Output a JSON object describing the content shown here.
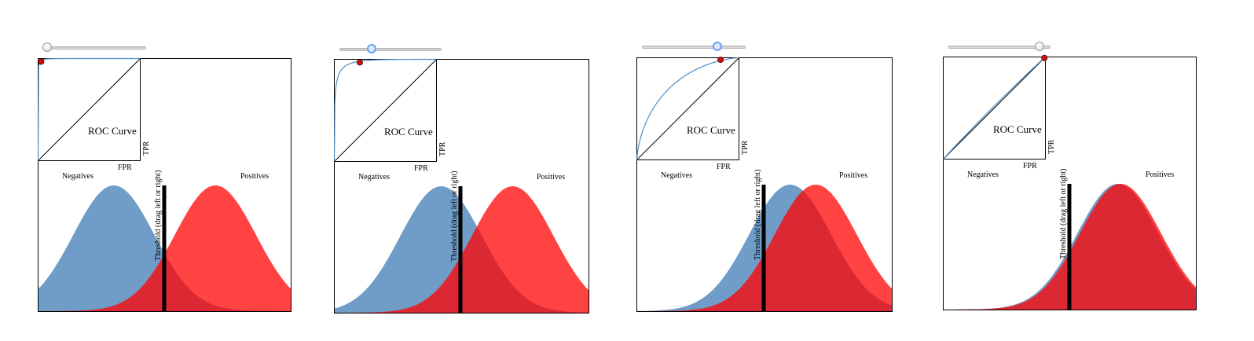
{
  "chart_data": [
    {
      "type": "area",
      "title": "",
      "roc_label": "ROC Curve",
      "roc_xlabel": "FPR",
      "roc_ylabel": "TPR",
      "neg_label": "Negatives",
      "pos_label": "Positives",
      "threshold_label": "Threshold (drag left or right)",
      "separation": 4.0,
      "threshold_position": 0.5,
      "slider_value": 0.0,
      "operating_point": {
        "fpr": 0.03,
        "tpr": 0.97
      },
      "series": [
        {
          "name": "Negatives",
          "mean": 0.3,
          "sd": 0.16
        },
        {
          "name": "Positives",
          "mean": 0.7,
          "sd": 0.16
        }
      ]
    },
    {
      "type": "area",
      "title": "",
      "roc_label": "ROC Curve",
      "roc_xlabel": "FPR",
      "roc_ylabel": "TPR",
      "neg_label": "Negatives",
      "pos_label": "Positives",
      "threshold_label": "Threshold (drag left or right)",
      "separation": 2.75,
      "threshold_position": 0.5,
      "slider_value": 0.3,
      "operating_point": {
        "fpr": 0.25,
        "tpr": 0.97
      },
      "series": [
        {
          "name": "Negatives",
          "mean": 0.42,
          "sd": 0.16
        },
        {
          "name": "Positives",
          "mean": 0.7,
          "sd": 0.16
        }
      ]
    },
    {
      "type": "area",
      "title": "",
      "roc_label": "ROC Curve",
      "roc_xlabel": "FPR",
      "roc_ylabel": "TPR",
      "neg_label": "Negatives",
      "pos_label": "Positives",
      "threshold_label": "Threshold (drag left or right)",
      "separation": 1.0,
      "threshold_position": 0.5,
      "slider_value": 0.75,
      "operating_point": {
        "fpr": 0.82,
        "tpr": 0.98
      },
      "series": [
        {
          "name": "Negatives",
          "mean": 0.6,
          "sd": 0.16
        },
        {
          "name": "Positives",
          "mean": 0.7,
          "sd": 0.16
        }
      ]
    },
    {
      "type": "area",
      "title": "",
      "roc_label": "ROC Curve",
      "roc_xlabel": "FPR",
      "roc_ylabel": "TPR",
      "neg_label": "Negatives",
      "pos_label": "Positives",
      "threshold_label": "Threshold (drag left or right)",
      "separation": 0.05,
      "threshold_position": 0.5,
      "slider_value": 0.93,
      "operating_point": {
        "fpr": 0.99,
        "tpr": 0.99
      },
      "series": [
        {
          "name": "Negatives",
          "mean": 0.69,
          "sd": 0.16
        },
        {
          "name": "Positives",
          "mean": 0.7,
          "sd": 0.16
        }
      ]
    }
  ],
  "colors": {
    "negatives": "#6f9dc8",
    "positives": "#ff3b3b",
    "overlap": "#dc2832",
    "threshold": "#000000",
    "roc_curve": "#4f8fc6",
    "operating_point": "#cc1111"
  }
}
